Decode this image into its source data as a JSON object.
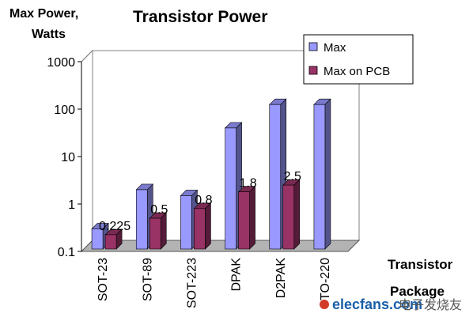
{
  "chart_data": {
    "type": "bar",
    "title": "Transistor Power",
    "ylabel_line1": "Max Power,",
    "ylabel_line2": "Watts",
    "xlabel_line1": "Transistor",
    "xlabel_line2": "Package",
    "yscale": "log",
    "ylim": [
      0.1,
      1000
    ],
    "yticks": [
      {
        "value": 0.1,
        "label": "0.1"
      },
      {
        "value": 1,
        "label": "1"
      },
      {
        "value": 10,
        "label": "10"
      },
      {
        "value": 100,
        "label": "100"
      },
      {
        "value": 1000,
        "label": "1000"
      }
    ],
    "categories": [
      "SOT-23",
      "SOT-89",
      "SOT-223",
      "DPAK",
      "D2PAK",
      "TO-220"
    ],
    "series": [
      {
        "name": "Max",
        "color": "#9999ff",
        "values": [
          0.3,
          2,
          1.5,
          40,
          125,
          125
        ]
      },
      {
        "name": "Max on PCB",
        "color": "#993366",
        "values": [
          0.225,
          0.5,
          0.8,
          1.8,
          2.5,
          null
        ]
      }
    ],
    "data_labels": [
      "0.225",
      "0.5",
      "0.8",
      "1.8",
      "2.5",
      ""
    ],
    "legend_position": "top-right",
    "grid": true
  },
  "watermark": {
    "brand": "elecfans.com",
    "cn": "电子发烧友"
  }
}
